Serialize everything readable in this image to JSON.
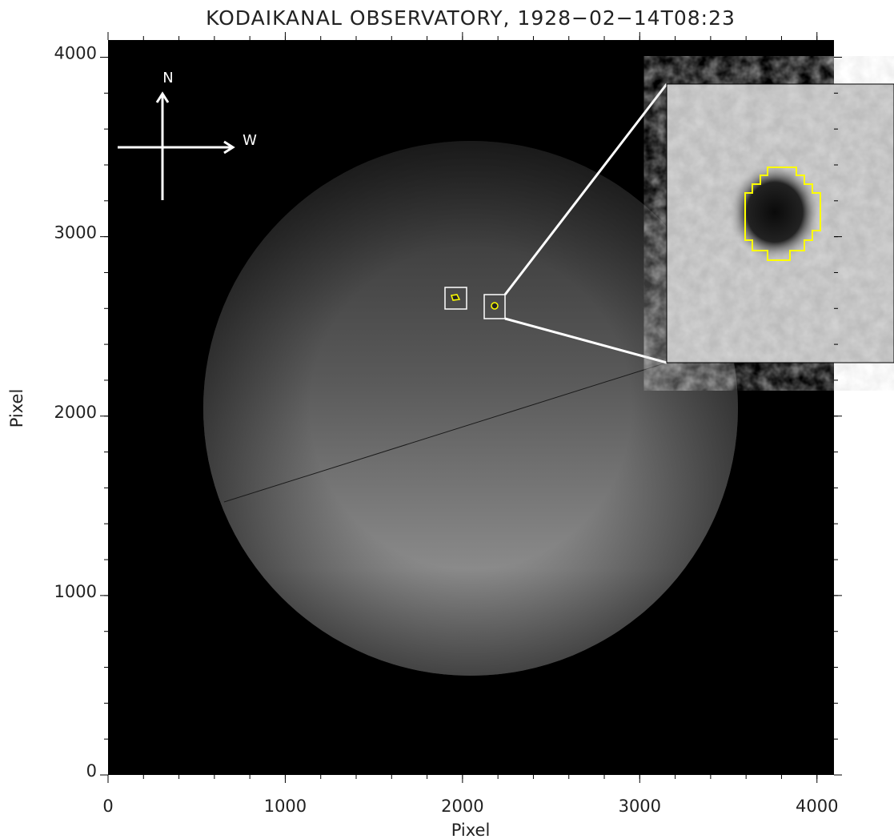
{
  "chart_data": {
    "type": "image",
    "title": "KODAIKANAL OBSERVATORY, 1928−02−14T08:23",
    "x_label": "Pixel",
    "y_label": "Pixel",
    "xlim": [
      0,
      4096
    ],
    "ylim": [
      0,
      4096
    ],
    "xticks": [
      0,
      1000,
      2000,
      3000,
      4000
    ],
    "yticks": [
      0,
      1000,
      2000,
      3000,
      4000
    ],
    "annotations": [
      "N",
      "W"
    ]
  }
}
